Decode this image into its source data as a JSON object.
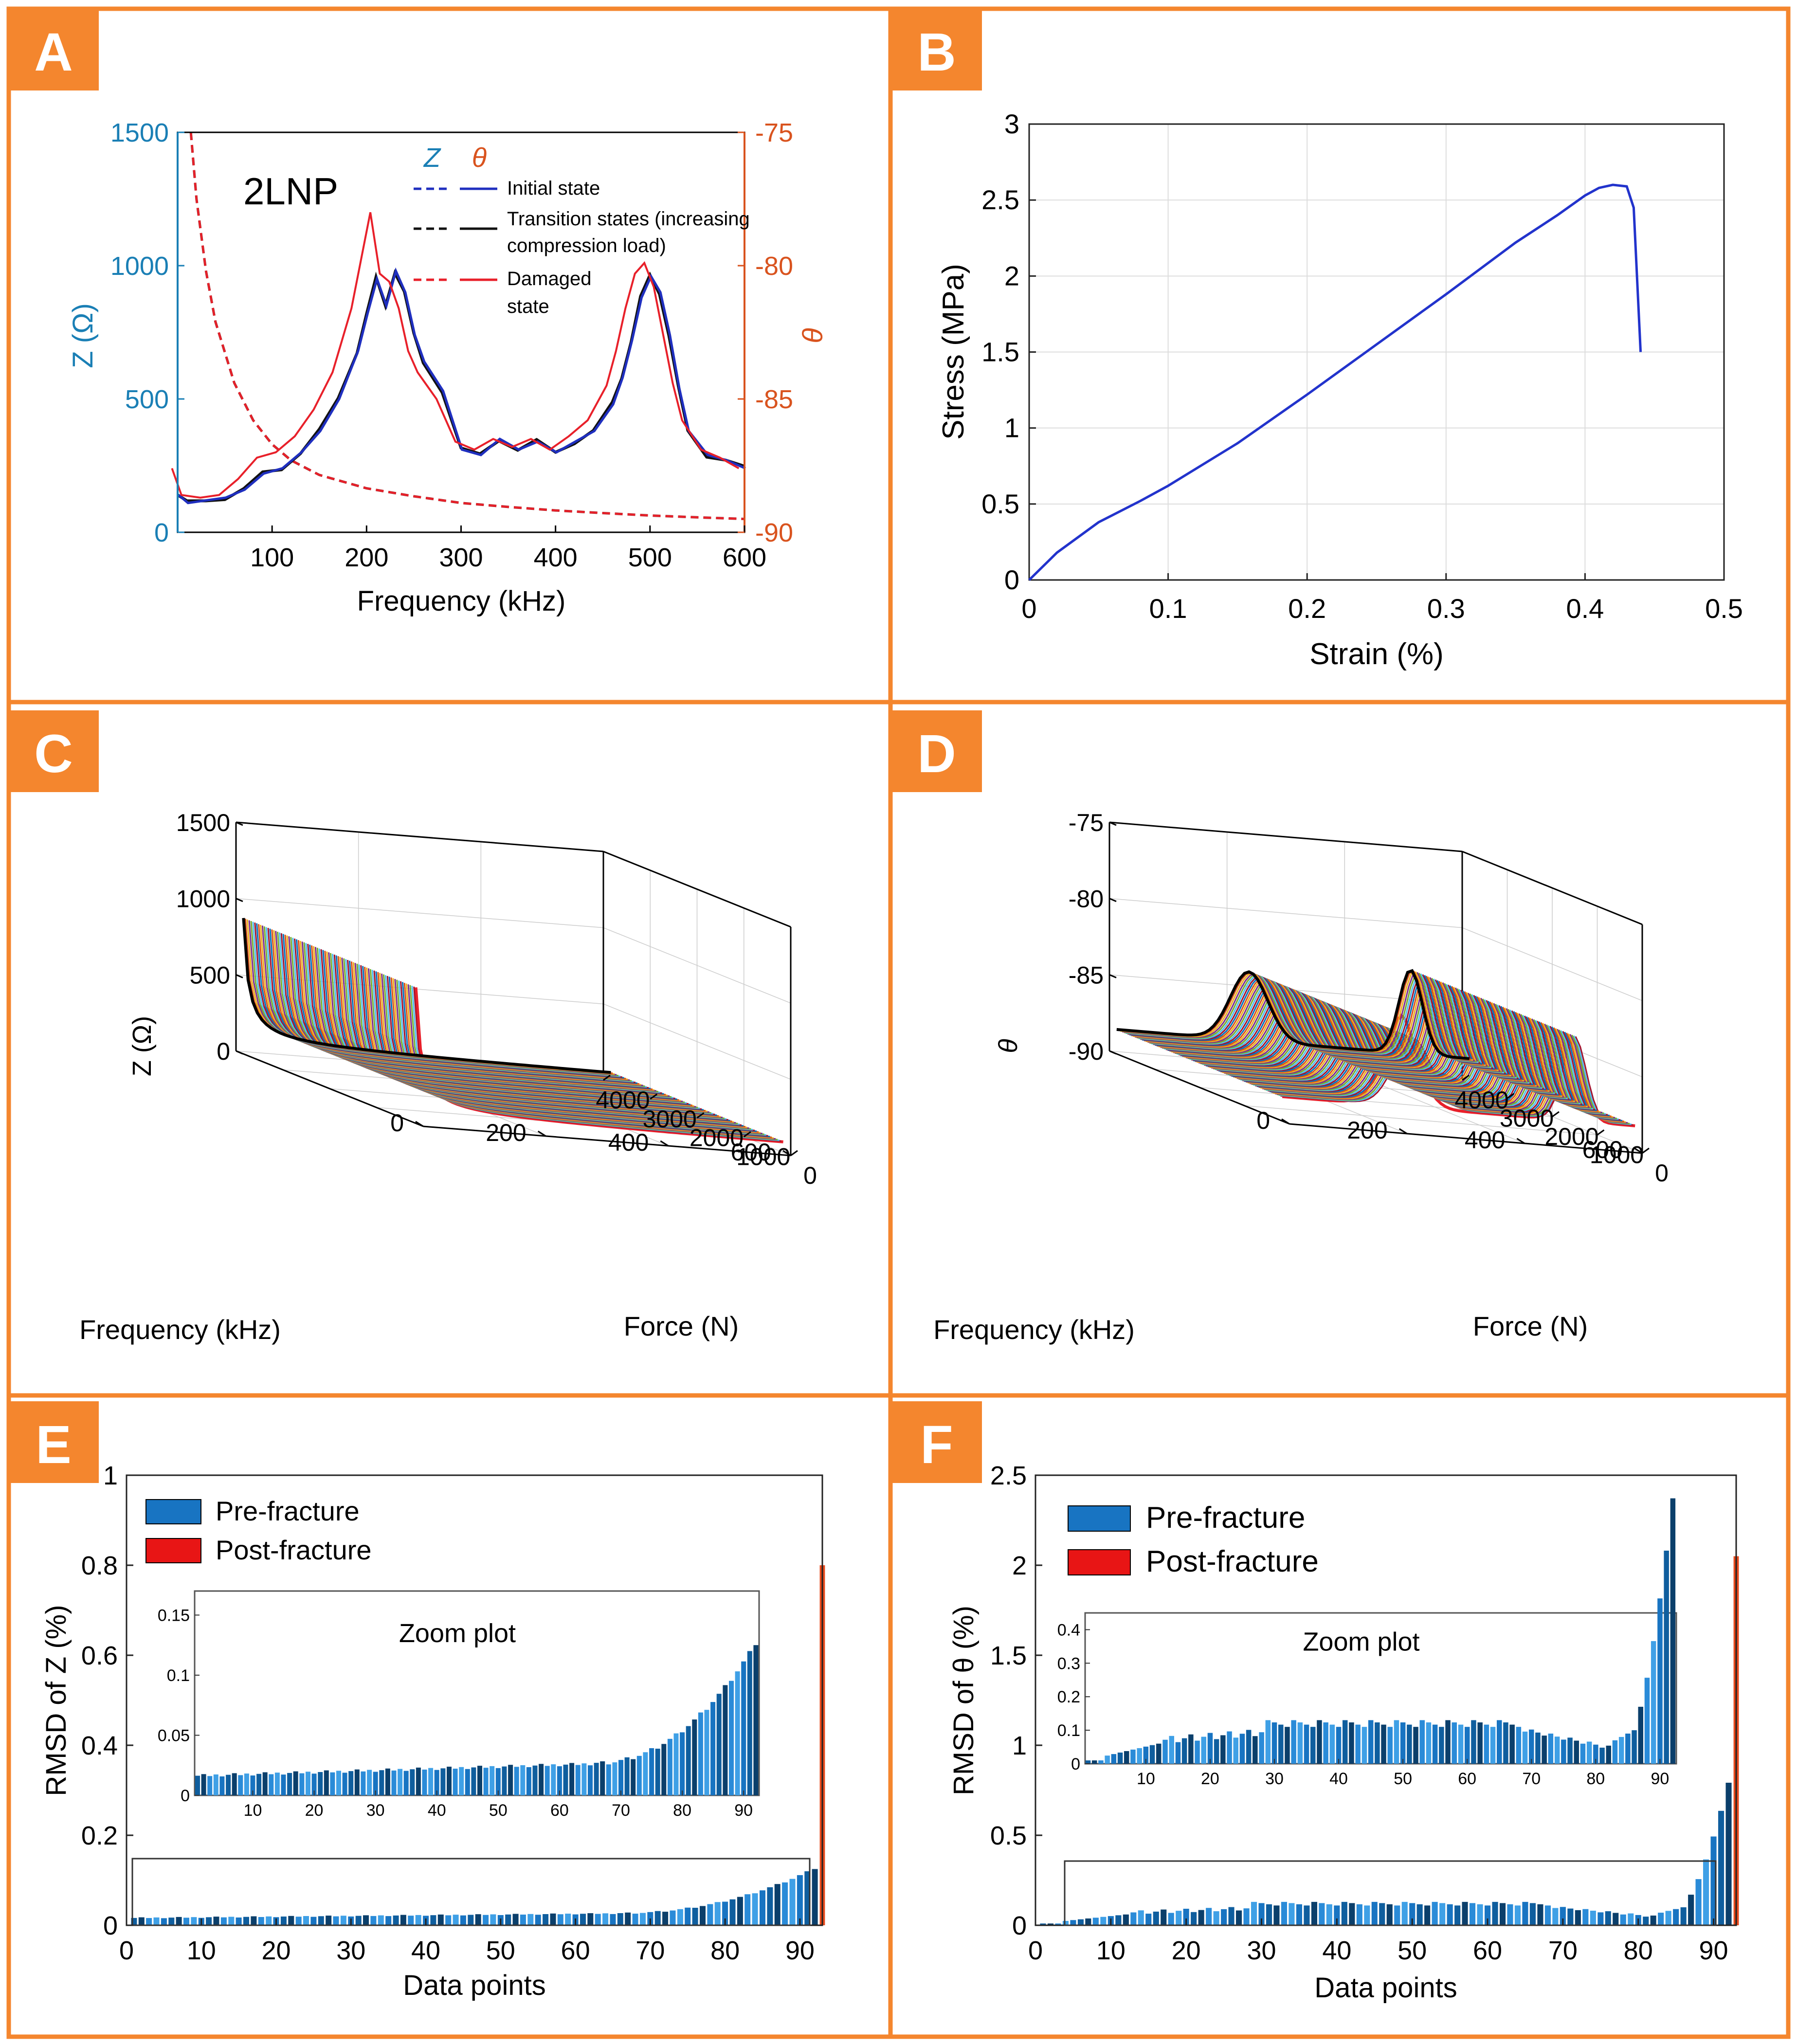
{
  "colors": {
    "frame": "#F4862E",
    "badge": "#F4862E",
    "z_axis": "#1A7FB5",
    "theta_axis": "#D9531E",
    "initial": "#1F2FBF",
    "transition": "#111111",
    "damaged": "#E8202A",
    "bar_pre": "#1874C2",
    "bar_post": "#E84A1C",
    "stress_line": "#2233CC"
  },
  "panels": {
    "A": {
      "label": "A"
    },
    "B": {
      "label": "B"
    },
    "C": {
      "label": "C"
    },
    "D": {
      "label": "D"
    },
    "E": {
      "label": "E"
    },
    "F": {
      "label": "F"
    }
  },
  "chart_data": [
    {
      "id": "A",
      "type": "line",
      "annotation": "2LNP",
      "xlabel": "Frequency (kHz)",
      "ylabel_left": "Z (Ω)",
      "ylabel_right": "θ",
      "xlim": [
        0,
        600
      ],
      "xticks": [
        "100",
        "200",
        "300",
        "400",
        "500",
        "600"
      ],
      "ylim_left": [
        0,
        1500
      ],
      "yticks_left": [
        "0",
        "500",
        "1000",
        "1500"
      ],
      "ylim_right": [
        -90,
        -75
      ],
      "yticks_right": [
        "-90",
        "-85",
        "-80",
        "-75"
      ],
      "legend_headers": [
        "Z",
        "θ"
      ],
      "legend": [
        "Initial state",
        "Transition states (increasing",
        "compression load)",
        "Damaged",
        "state"
      ],
      "theta_initial": {
        "x": [
          0,
          10,
          30,
          50,
          70,
          90,
          110,
          130,
          150,
          170,
          190,
          200,
          210,
          220,
          230,
          240,
          250,
          260,
          280,
          300,
          320,
          340,
          360,
          380,
          400,
          420,
          440,
          460,
          470,
          480,
          490,
          500,
          510,
          520,
          530,
          540,
          560,
          580,
          600
        ],
        "y": [
          -88.6,
          -88.9,
          -88.8,
          -88.7,
          -88.4,
          -87.8,
          -87.6,
          -87.0,
          -86.2,
          -85.0,
          -83.2,
          -81.8,
          -80.5,
          -81.5,
          -80.2,
          -81.0,
          -82.6,
          -83.6,
          -84.7,
          -86.9,
          -87.1,
          -86.5,
          -86.9,
          -86.6,
          -87.0,
          -86.6,
          -86.2,
          -85.2,
          -84.2,
          -82.8,
          -81.2,
          -80.4,
          -81.0,
          -82.6,
          -84.6,
          -86.2,
          -87.1,
          -87.3,
          -87.6
        ]
      },
      "theta_damaged": {
        "x": [
          0,
          10,
          30,
          50,
          70,
          90,
          110,
          130,
          150,
          170,
          190,
          200,
          210,
          220,
          230,
          240,
          250,
          260,
          280,
          300,
          320,
          340,
          360,
          380,
          400,
          420,
          440,
          460,
          470,
          480,
          490,
          500,
          510,
          520,
          530,
          540,
          560,
          580,
          600
        ],
        "y": [
          -87.6,
          -88.6,
          -88.7,
          -88.6,
          -88.0,
          -87.2,
          -87.0,
          -86.4,
          -85.4,
          -84.0,
          -81.6,
          -79.8,
          -78.0,
          -80.3,
          -80.6,
          -81.6,
          -83.2,
          -84.0,
          -85.0,
          -86.6,
          -86.9,
          -86.5,
          -86.8,
          -86.5,
          -86.9,
          -86.4,
          -85.8,
          -84.5,
          -83.2,
          -81.6,
          -80.3,
          -79.9,
          -80.8,
          -82.6,
          -84.4,
          -85.8,
          -86.9,
          -87.2,
          -87.6
        ]
      },
      "z_damaged": {
        "x": [
          14,
          20,
          30,
          40,
          60,
          80,
          100,
          120,
          150,
          200,
          250,
          300,
          350,
          400,
          450,
          500,
          550,
          600
        ],
        "y": [
          1500,
          1250,
          980,
          790,
          560,
          420,
          330,
          270,
          215,
          165,
          135,
          110,
          95,
          82,
          72,
          63,
          56,
          50
        ]
      }
    },
    {
      "id": "B",
      "type": "line",
      "xlabel": "Strain (%)",
      "ylabel": "Stress (MPa)",
      "xlim": [
        0,
        0.5
      ],
      "xticks": [
        "0",
        "0.1",
        "0.2",
        "0.3",
        "0.4",
        "0.5"
      ],
      "ylim": [
        0,
        3
      ],
      "yticks": [
        "0",
        "0.5",
        "1",
        "1.5",
        "2",
        "2.5",
        "3"
      ],
      "x": [
        0,
        0.02,
        0.05,
        0.08,
        0.1,
        0.15,
        0.2,
        0.25,
        0.3,
        0.35,
        0.38,
        0.4,
        0.41,
        0.42,
        0.43,
        0.435,
        0.44
      ],
      "y": [
        0,
        0.18,
        0.38,
        0.52,
        0.62,
        0.9,
        1.22,
        1.55,
        1.88,
        2.22,
        2.4,
        2.53,
        2.58,
        2.6,
        2.59,
        2.45,
        1.5
      ]
    },
    {
      "id": "C",
      "type": "line",
      "zlabel": "Z (Ω)",
      "xlabel": "Frequency (kHz)",
      "ylabel": "Force (N)",
      "zticks": [
        "0",
        "500",
        "1000",
        "1500"
      ],
      "freq_ticks": [
        "0",
        "200",
        "400",
        "600"
      ],
      "force_ticks": [
        "0",
        "1000",
        "2000",
        "3000",
        "4000"
      ],
      "curve_count": 92
    },
    {
      "id": "D",
      "type": "line",
      "zlabel": "θ",
      "xlabel": "Frequency (kHz)",
      "ylabel": "Force (N)",
      "zticks": [
        "-90",
        "-85",
        "-80",
        "-75"
      ],
      "freq_ticks": [
        "0",
        "200",
        "400",
        "600"
      ],
      "force_ticks": [
        "0",
        "1000",
        "2000",
        "3000",
        "4000"
      ],
      "curve_count": 92
    },
    {
      "id": "E",
      "type": "bar",
      "xlabel": "Data points",
      "ylabel": "RMSD of Z (%)",
      "xlim": [
        0,
        93
      ],
      "xticks": [
        "0",
        "10",
        "20",
        "30",
        "40",
        "50",
        "60",
        "70",
        "80",
        "90"
      ],
      "ylim": [
        0,
        1
      ],
      "yticks": [
        "0",
        "0.2",
        "0.4",
        "0.6",
        "0.8",
        "1"
      ],
      "legend": [
        "Pre-fracture",
        "Post-fracture"
      ],
      "pre_start": 0.015,
      "pre_mid": 0.025,
      "pre_end": 0.125,
      "post_value": 0.8,
      "inset": {
        "title": "Zoom plot",
        "ylim": [
          0,
          0.17
        ],
        "yticks": [
          "0",
          "0.05",
          "0.1",
          "0.15"
        ],
        "xticks": [
          "10",
          "20",
          "30",
          "40",
          "50",
          "60",
          "70",
          "80",
          "90"
        ]
      }
    },
    {
      "id": "F",
      "type": "bar",
      "xlabel": "Data points",
      "ylabel": "RMSD of θ (%)",
      "xlim": [
        0,
        93
      ],
      "xticks": [
        "0",
        "10",
        "20",
        "30",
        "40",
        "50",
        "60",
        "70",
        "80",
        "90"
      ],
      "ylim": [
        0,
        2.5
      ],
      "yticks": [
        "0",
        "0.5",
        "1",
        "1.5",
        "2",
        "2.5"
      ],
      "legend": [
        "Pre-fracture",
        "Post-fracture"
      ],
      "post_value": 2.05,
      "inset": {
        "title": "Zoom plot",
        "ylim": [
          0,
          0.45
        ],
        "yticks": [
          "0",
          "0.1",
          "0.2",
          "0.3",
          "0.4"
        ],
        "xticks": [
          "10",
          "20",
          "30",
          "40",
          "50",
          "60",
          "70",
          "80",
          "90"
        ]
      }
    }
  ]
}
